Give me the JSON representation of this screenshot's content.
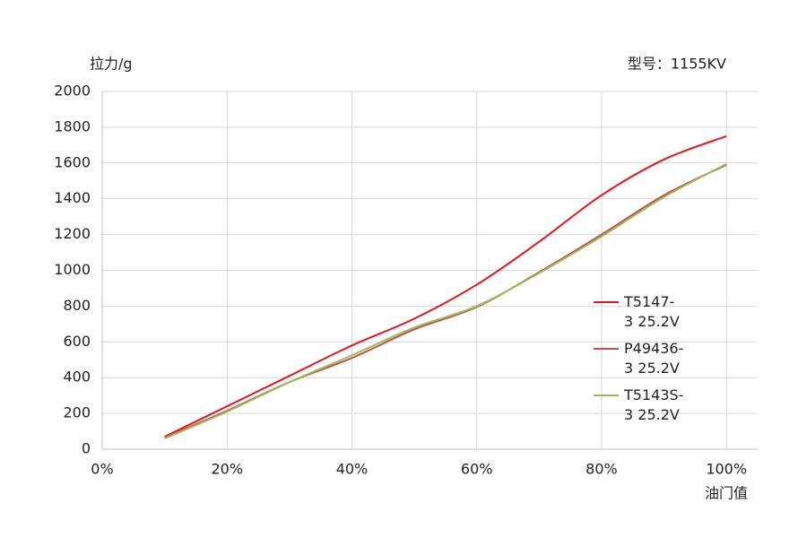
{
  "chart_data": {
    "type": "line",
    "y_label": "拉力/g",
    "x_label": "油门值",
    "annotation": "型号：1155KV",
    "x": [
      10,
      20,
      30,
      40,
      50,
      60,
      70,
      80,
      90,
      100
    ],
    "series": [
      {
        "name": "T5147-3 25.2V",
        "color": "#e8141b",
        "values": [
          70,
          240,
          410,
          580,
          730,
          920,
          1160,
          1420,
          1620,
          1750
        ]
      },
      {
        "name": "P49436-3 25.2V",
        "color": "#c0504d",
        "values": [
          65,
          215,
          375,
          510,
          670,
          795,
          990,
          1200,
          1420,
          1590
        ]
      },
      {
        "name": "T5143S-3 25.2V",
        "color": "#9bbb59",
        "values": [
          60,
          210,
          375,
          525,
          680,
          800,
          985,
          1190,
          1410,
          1595
        ]
      }
    ],
    "xlim": [
      0,
      105
    ],
    "ylim": [
      0,
      2000
    ],
    "xticks": [
      {
        "value": 0,
        "label": "0%"
      },
      {
        "value": 20,
        "label": "20%"
      },
      {
        "value": 40,
        "label": "40%"
      },
      {
        "value": 60,
        "label": "60%"
      },
      {
        "value": 80,
        "label": "80%"
      },
      {
        "value": 100,
        "label": "100%"
      }
    ],
    "yticks": [
      0,
      200,
      400,
      600,
      800,
      1000,
      1200,
      1400,
      1600,
      1800,
      2000
    ],
    "grid": true
  }
}
